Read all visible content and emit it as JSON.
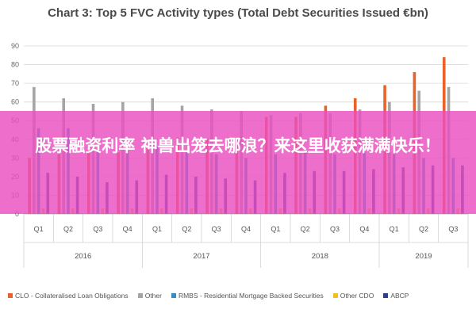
{
  "overlay_text": "股票融资利率 神兽出笼去哪浪？来这里收获满满快乐！",
  "chart_data": {
    "type": "bar",
    "title": "Chart 3: Top 5 FVC Activity types (Total Debt Securities Issued €bn)",
    "xlabel": "",
    "ylabel": "",
    "ylim": [
      0,
      90
    ],
    "yticks": [
      0,
      10,
      20,
      30,
      40,
      50,
      60,
      70,
      80,
      90
    ],
    "grid": true,
    "legend_position": "bottom",
    "categories": [
      "Q1",
      "Q2",
      "Q3",
      "Q4",
      "Q1",
      "Q2",
      "Q3",
      "Q4",
      "Q1",
      "Q2",
      "Q3",
      "Q4",
      "Q1",
      "Q2",
      "Q3"
    ],
    "groups": [
      {
        "label": "2016",
        "count": 4
      },
      {
        "label": "2017",
        "count": 4
      },
      {
        "label": "2018",
        "count": 4
      },
      {
        "label": "2019",
        "count": 3
      }
    ],
    "series": [
      {
        "name": "CLO - Collateralised Loan Obligations",
        "color": "#e8622a",
        "values": [
          30,
          32,
          34,
          33,
          40,
          41,
          40,
          41,
          52,
          52,
          58,
          62,
          69,
          76,
          84
        ]
      },
      {
        "name": "Other",
        "color": "#a5a5a5",
        "values": [
          68,
          62,
          59,
          60,
          62,
          58,
          56,
          55,
          53,
          54,
          54,
          56,
          60,
          66,
          68
        ]
      },
      {
        "name": "RMBS - Residential Mortgage Backed Securities",
        "color": "#2f8fc7",
        "values": [
          46,
          46,
          35,
          34,
          36,
          33,
          32,
          30,
          32,
          33,
          32,
          33,
          32,
          30,
          30
        ]
      },
      {
        "name": "Other CDO",
        "color": "#f0c020",
        "values": [
          3,
          3,
          3,
          3,
          3,
          3,
          3,
          3,
          3,
          3,
          3,
          3,
          3,
          3,
          3
        ]
      },
      {
        "name": "ABCP",
        "color": "#2a3f8f",
        "values": [
          22,
          20,
          17,
          18,
          21,
          20,
          19,
          18,
          22,
          23,
          23,
          24,
          25,
          26,
          26
        ]
      }
    ]
  }
}
